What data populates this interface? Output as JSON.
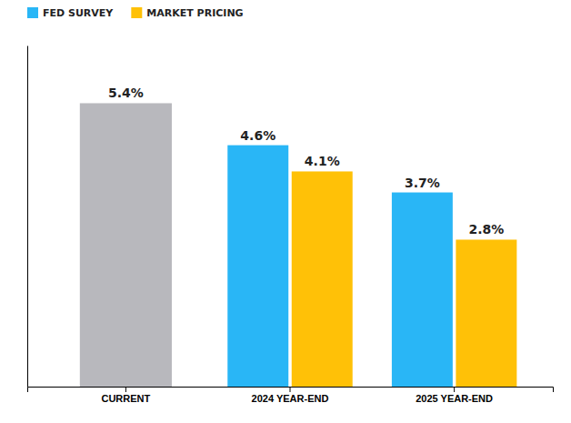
{
  "chart_data": {
    "type": "bar",
    "categories": [
      "CURRENT",
      "2024 YEAR-END",
      "2025 YEAR-END"
    ],
    "series": [
      {
        "name": "FED SURVEY",
        "color": "#29b6f6",
        "colors": [
          "#b8b8bd",
          "#29b6f6",
          "#29b6f6"
        ],
        "values": [
          5.4,
          4.6,
          3.7
        ],
        "value_labels": [
          "5.4%",
          "4.6%",
          "3.7%"
        ]
      },
      {
        "name": "MARKET PRICING",
        "color": "#ffc107",
        "values": [
          null,
          4.1,
          2.8
        ],
        "value_labels": [
          null,
          "4.1%",
          "2.8%"
        ]
      }
    ],
    "ylim": [
      0,
      6.5
    ],
    "tick_labels": "x",
    "legend": "upper left",
    "data_labels": true
  }
}
